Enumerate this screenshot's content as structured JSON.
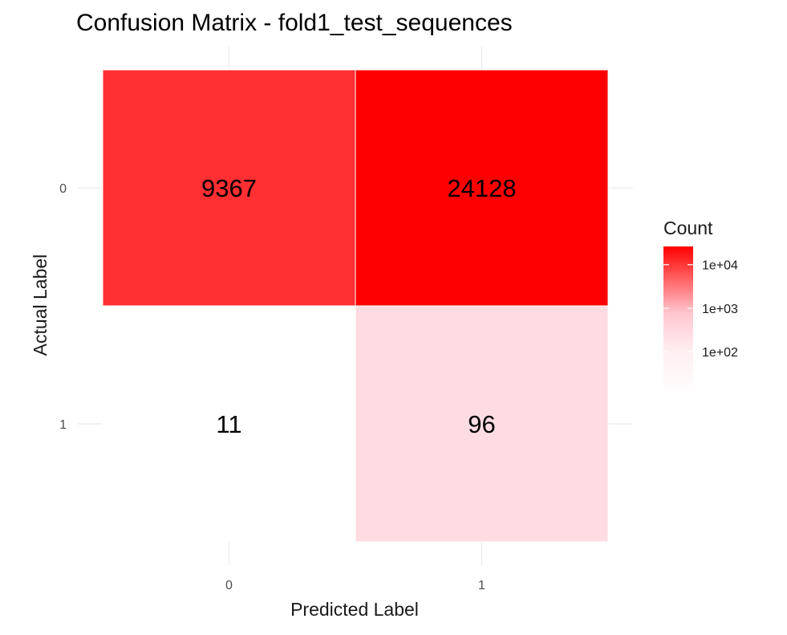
{
  "chart_data": {
    "type": "heatmap",
    "title": "Confusion Matrix - fold1_test_sequences",
    "xlabel": "Predicted Label",
    "ylabel": "Actual Label",
    "x_categories": [
      "0",
      "1"
    ],
    "y_categories": [
      "0",
      "1"
    ],
    "cells": [
      {
        "actual": "0",
        "predicted": "0",
        "value": 9367
      },
      {
        "actual": "0",
        "predicted": "1",
        "value": 24128
      },
      {
        "actual": "1",
        "predicted": "0",
        "value": 11
      },
      {
        "actual": "1",
        "predicted": "1",
        "value": 96
      }
    ],
    "color_scale": {
      "type": "log10",
      "low_color": "#ffffff",
      "mid_color": "#ffc0cb",
      "high_color": "#ff0000",
      "domain": [
        11,
        24128
      ]
    },
    "legend": {
      "title": "Count",
      "position": "right",
      "labels": [
        {
          "text": "1e+04",
          "value": 10000
        },
        {
          "text": "1e+03",
          "value": 1000
        },
        {
          "text": "1e+02",
          "value": 100
        }
      ]
    },
    "grid": true
  }
}
